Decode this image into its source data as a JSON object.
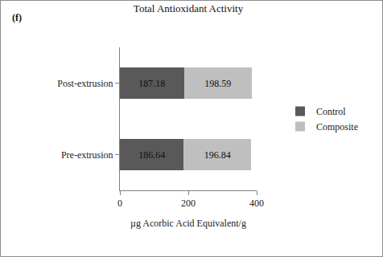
{
  "chart_data": {
    "type": "bar",
    "title": "Total Antioxidant Activity",
    "annotations": [
      "(f)"
    ],
    "orientation": "horizontal",
    "stacked": true,
    "data_labels": true,
    "grid": false,
    "legend": "right",
    "x_label": "µg Acorbic Acid Equivalent/g",
    "categories": [
      "Pre-extrusion",
      "Post-extrusion"
    ],
    "series": [
      {
        "name": "Control",
        "color": "#595959",
        "values": [
          186.64,
          187.18
        ]
      },
      {
        "name": "Composite",
        "color": "#bfbfbf",
        "values": [
          196.84,
          198.59
        ]
      }
    ],
    "xlim": [
      0,
      400
    ],
    "xticks": [
      0,
      200,
      400
    ]
  }
}
